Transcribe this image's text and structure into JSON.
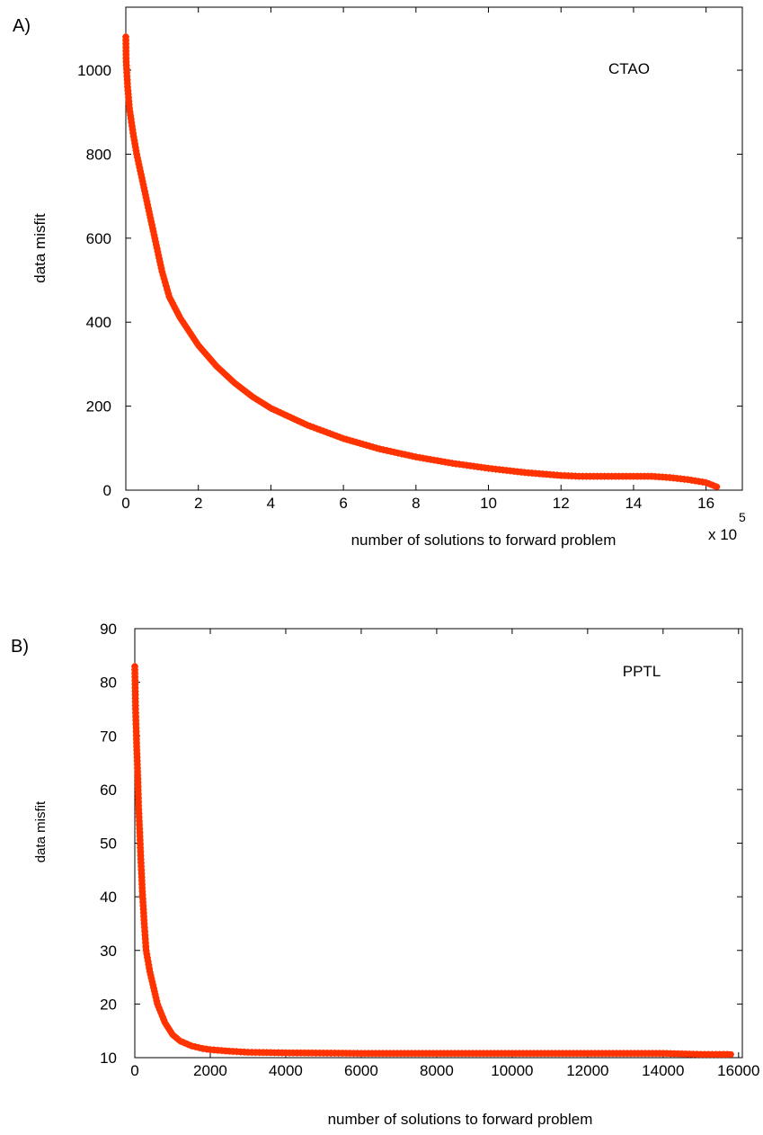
{
  "panels": [
    {
      "label": "A)",
      "chart_data": {
        "type": "scatter",
        "annotation": "CTAO",
        "xlabel": "number of solutions to forward problem",
        "ylabel": "data misfit",
        "x_multiplier": "x 10",
        "x_multiplier_exp": "5",
        "xlim": [
          0,
          17
        ],
        "ylim": [
          0,
          1150
        ],
        "xticks": [
          0,
          2,
          4,
          6,
          8,
          10,
          12,
          14,
          16
        ],
        "yticks": [
          0,
          200,
          400,
          600,
          800,
          1000
        ],
        "marker": "+",
        "color": "#ff3300",
        "series": [
          {
            "x": [
              0,
              0.01,
              0.05,
              0.1,
              0.2,
              0.3,
              0.5,
              0.7,
              0.9,
              1.0,
              1.2,
              1.5,
              2,
              2.5,
              3,
              3.5,
              4,
              5,
              6,
              7,
              8,
              9,
              10,
              11,
              12,
              12.5,
              13,
              14,
              14.5,
              15,
              15.5,
              16,
              16.3
            ],
            "y": [
              1080,
              1020,
              960,
              910,
              850,
              800,
              720,
              640,
              560,
              520,
              460,
              410,
              345,
              295,
              255,
              222,
              195,
              155,
              123,
              98,
              79,
              64,
              52,
              42,
              35,
              33,
              33,
              33,
              33,
              30,
              25,
              18,
              8
            ]
          }
        ]
      }
    },
    {
      "label": "B)",
      "chart_data": {
        "type": "scatter",
        "annotation": "PPTL",
        "xlabel": "number of solutions to forward problem",
        "ylabel": "data misfit",
        "xlim": [
          0,
          16100
        ],
        "ylim": [
          10,
          90
        ],
        "xticks": [
          0,
          2000,
          4000,
          6000,
          8000,
          10000,
          12000,
          14000,
          16000
        ],
        "yticks": [
          10,
          20,
          30,
          40,
          50,
          60,
          70,
          80,
          90
        ],
        "marker": "+",
        "color": "#ff3300",
        "series": [
          {
            "x": [
              0,
              20,
              50,
              80,
              100,
              130,
              160,
              200,
              250,
              300,
              400,
              500,
              600,
              800,
              1000,
              1200,
              1500,
              1800,
              2000,
              2500,
              3000,
              4000,
              5000,
              6000,
              8000,
              10000,
              12000,
              14000,
              14500,
              15000,
              15800
            ],
            "y": [
              83,
              75,
              68,
              62,
              57,
              52,
              47,
              41,
              35,
              30,
              26,
              23,
              20,
              16.5,
              14.3,
              13.1,
              12.2,
              11.7,
              11.5,
              11.2,
              11,
              10.9,
              10.85,
              10.8,
              10.8,
              10.8,
              10.8,
              10.8,
              10.7,
              10.6,
              10.6
            ]
          }
        ]
      }
    }
  ]
}
